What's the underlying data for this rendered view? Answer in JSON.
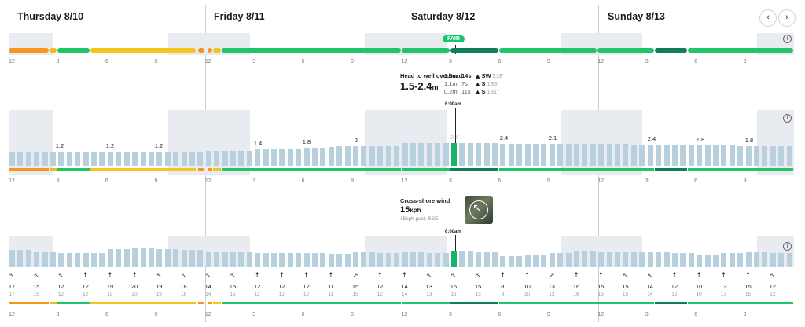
{
  "days": [
    {
      "label": "Thursday 8/10"
    },
    {
      "label": "Friday 8/11"
    },
    {
      "label": "Saturday 8/12"
    },
    {
      "label": "Sunday 8/13"
    }
  ],
  "nav": {
    "prev": "‹",
    "next": "›"
  },
  "hour_ticks": [
    "12",
    "3",
    "6",
    "9",
    "12",
    "3",
    "6",
    "9",
    "12",
    "3",
    "6",
    "9",
    "12",
    "3",
    "6",
    "9"
  ],
  "rating": {
    "badge": "FAIR"
  },
  "surf": {
    "description": "Head to well overhead",
    "range": "1.5-2.4",
    "unit": "m",
    "swells": [
      {
        "height": "1.6m",
        "period": "14s",
        "dir": "SW",
        "deg": "218°"
      },
      {
        "height": "1.1m",
        "period": "7s",
        "dir": "S",
        "deg": "185°"
      },
      {
        "height": "0.2m",
        "period": "11s",
        "dir": "S",
        "deg": "181°"
      }
    ],
    "time": "6:00am",
    "height_labels": [
      "1.2",
      "1.2",
      "1.2",
      "1.4",
      "1.8",
      "2",
      "2.4",
      "2.4",
      "2.1",
      "2.4",
      "1.8",
      "1.8"
    ]
  },
  "wind": {
    "description": "Cross-shore wind",
    "speed": "15",
    "unit": "kph",
    "gust": "15kph gust, SSE",
    "time": "6:00am",
    "speeds": [
      "17",
      "15",
      "12",
      "12",
      "19",
      "20",
      "19",
      "18",
      "14",
      "15",
      "12",
      "12",
      "12",
      "11",
      "15",
      "12",
      "14",
      "13",
      "16",
      "15",
      "8",
      "10",
      "13",
      "16",
      "15",
      "15",
      "14",
      "12",
      "10",
      "13",
      "15",
      "12"
    ],
    "gusts": [
      "17",
      "15",
      "12",
      "12",
      "19",
      "20",
      "19",
      "18",
      "14",
      "15",
      "12",
      "12",
      "12",
      "11",
      "15",
      "12",
      "14",
      "13",
      "16",
      "15",
      "8",
      "10",
      "13",
      "16",
      "15",
      "15",
      "14",
      "12",
      "10",
      "13",
      "15",
      "12"
    ],
    "arrows": [
      "↖",
      "↖",
      "↖",
      "↑",
      "↑",
      "↑",
      "↖",
      "↖",
      "↖",
      "↖",
      "↑",
      "↑",
      "↑",
      "↑",
      "↗",
      "↑",
      "↑",
      "↖",
      "↖",
      "↖",
      "↑",
      "↑",
      "↗",
      "↑",
      "↑",
      "↖",
      "↖",
      "↑",
      "↑",
      "↑",
      "↑",
      "↖"
    ]
  }
}
